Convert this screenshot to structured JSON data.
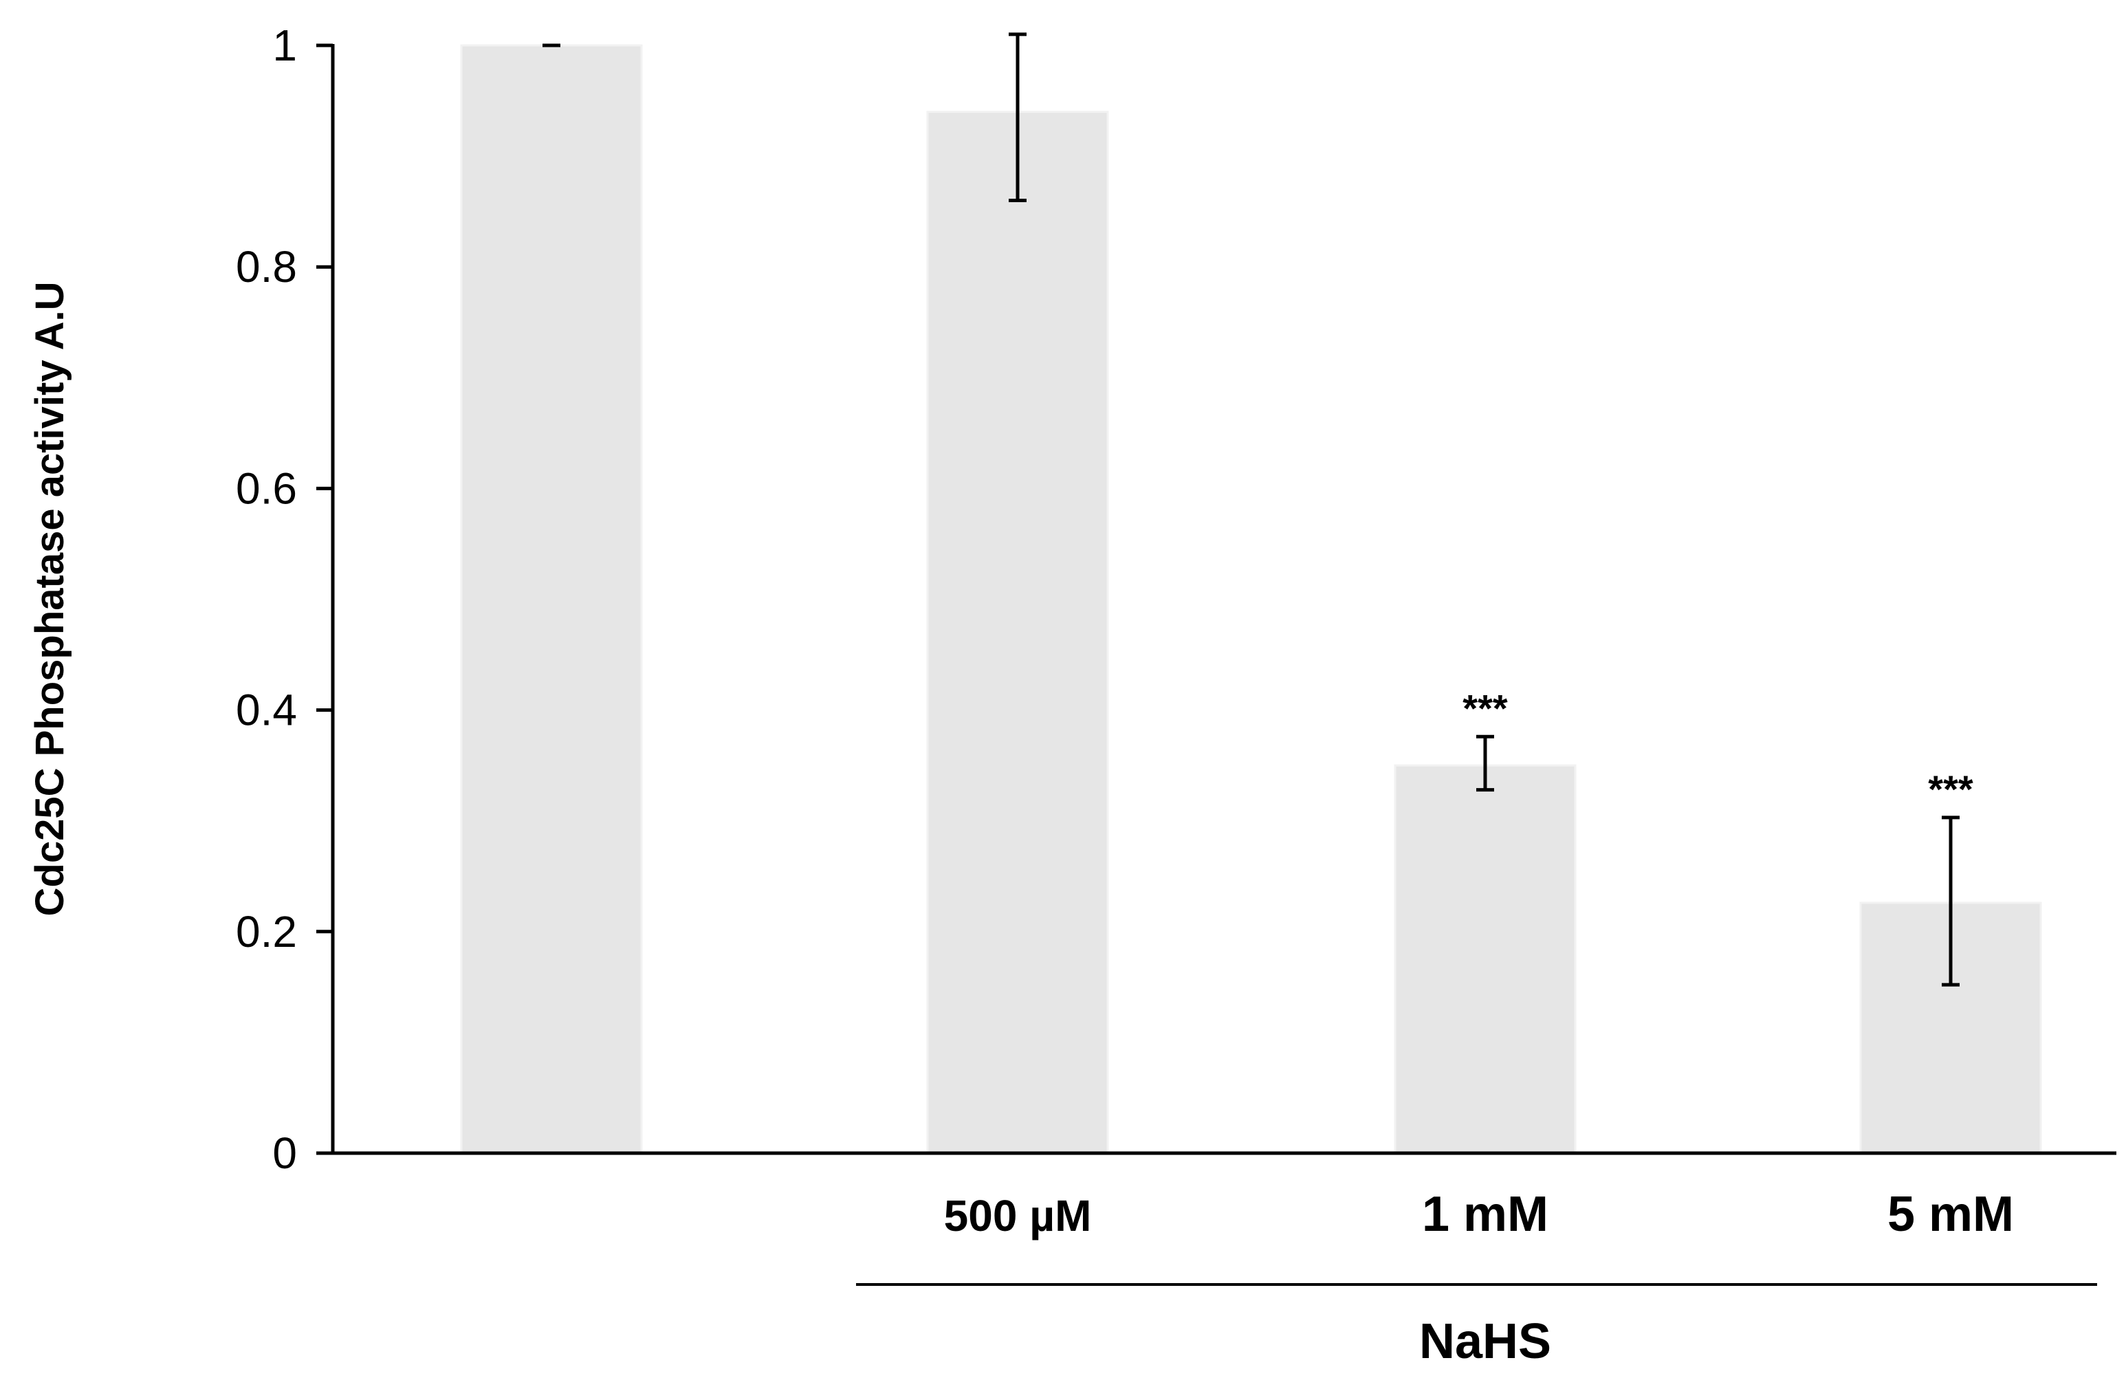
{
  "chart_data": {
    "type": "bar",
    "categories": [
      "",
      "500 µM",
      "1 mM",
      "5 mM"
    ],
    "values": [
      1.0,
      0.94,
      0.35,
      0.226
    ],
    "error_upper": [
      1.0,
      1.01,
      0.376,
      0.303
    ],
    "error_lower": [
      1.0,
      0.86,
      0.328,
      0.152
    ],
    "annotations": [
      "",
      "",
      "***",
      "***"
    ],
    "group_label": "NaHS",
    "ylabel": "Cdc25C Phosphatase activity A.U",
    "xlabel": "",
    "ylim": [
      0,
      1
    ],
    "yticks": [
      "0",
      "0.2",
      "0.4",
      "0.6",
      "0.8",
      "1"
    ],
    "ytick_values": [
      0,
      0.2,
      0.4,
      0.6,
      0.8,
      1
    ],
    "grid": false,
    "bar_color": "#e6e6e6"
  }
}
